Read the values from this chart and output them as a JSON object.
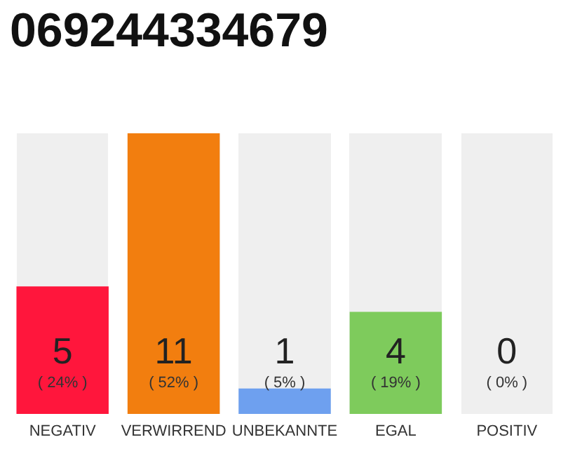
{
  "chart_data": {
    "type": "bar",
    "title": "069244334679",
    "categories": [
      "NEGATIV",
      "VERWIRREND",
      "UNBEKANNTE",
      "EGAL",
      "POSITIV"
    ],
    "values": [
      5,
      11,
      1,
      4,
      0
    ],
    "colors": [
      "#ff163c",
      "#f27e0f",
      "#6ea0ef",
      "#7ecb5c",
      "#d8d8d8"
    ],
    "value_labels": [
      "5\n( 24% )",
      "11\n( 52% )",
      "1\n( 5% )",
      "4\n( 19% )",
      "0\n( 0% )"
    ],
    "bands": [
      {
        "axis": "y",
        "from": 0,
        "to": 11,
        "color": "#efefef"
      }
    ]
  }
}
